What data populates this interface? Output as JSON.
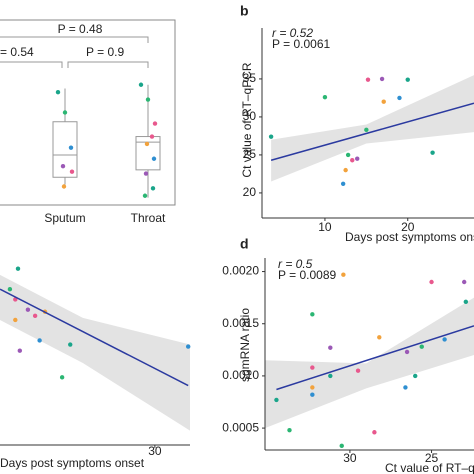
{
  "chart_data": [
    {
      "type": "box",
      "categories": [
        "Sputum",
        "Throat"
      ],
      "ylim": [
        0,
        1
      ],
      "boxes": [
        {
          "min": 0.11,
          "q1": 0.15,
          "median": 0.27,
          "q3": 0.45,
          "max": 0.63
        },
        {
          "min": 0.04,
          "q1": 0.19,
          "median": 0.34,
          "q3": 0.37,
          "max": 0.65
        }
      ],
      "points": [
        [
          0.61,
          0.5,
          0.18,
          0.1,
          0.31,
          0.21
        ],
        [
          0.65,
          0.57,
          0.44,
          0.33,
          0.25,
          0.17,
          0.09,
          0.05,
          0.37
        ]
      ],
      "annotations": [
        "P = 0.48",
        "= 0.54",
        "P = 0.9"
      ],
      "colors": [
        "#1aa58a",
        "#2bb673",
        "#e8588d",
        "#f2a23c",
        "#2f8fd1",
        "#9b59b6"
      ]
    },
    {
      "type": "scatter",
      "panel_label": "b",
      "stats": [
        "r = 0.52",
        "P = 0.0061"
      ],
      "y_label": "Ct value of RT–qPCR",
      "x_label": "Days post symptoms onset",
      "xlim": [
        2.4,
        28
      ],
      "ylim": [
        16.7,
        41.7
      ],
      "xticks": [
        10,
        20
      ],
      "yticks": [
        20,
        25,
        30,
        35
      ],
      "x": [
        3.5,
        10,
        15.2,
        17.1,
        19,
        16.9,
        20,
        15,
        13.3,
        12.5,
        12.2,
        13.9,
        23,
        12.8
      ],
      "y": [
        27.4,
        32.6,
        34.9,
        32,
        32.5,
        35,
        34.9,
        28.3,
        24.3,
        23,
        21.2,
        24.5,
        25.3,
        25
      ],
      "fit": {
        "x": [
          3.5,
          28
        ],
        "y": [
          24.3,
          31.8
        ],
        "color": "#2b3aa0"
      },
      "ci": {
        "x": [
          3.5,
          15,
          28
        ],
        "lower": [
          21.5,
          26.5,
          28
        ],
        "upper": [
          27,
          29,
          35.5
        ],
        "color": "#e3e3e3"
      },
      "colors": [
        "#1aa58a",
        "#2bb673",
        "#e8588d",
        "#f2a23c",
        "#2f8fd1",
        "#9b59b6"
      ]
    },
    {
      "type": "scatter",
      "x_label": "Days post symptoms onset",
      "xlim": [
        12.8,
        33.9
      ],
      "ylim": [
        0,
        1
      ],
      "xticks": [
        30
      ],
      "x": [
        14.8,
        13.9,
        16.7,
        14.5,
        17.2,
        15,
        20.6,
        19.7,
        14.5,
        17.8,
        33.7,
        15.9
      ],
      "y": [
        0.86,
        0.76,
        0.63,
        0.61,
        0.51,
        0.46,
        0.49,
        0.33,
        0.71,
        0.65,
        0.48,
        0.66
      ],
      "fit": {
        "x": [
          12.8,
          33.7
        ],
        "y": [
          0.76,
          0.29
        ],
        "color": "#2b3aa0"
      },
      "ci": {
        "x": [
          12.8,
          22,
          33.9
        ],
        "lower": [
          0.61,
          0.4,
          0.07
        ],
        "upper": [
          0.83,
          0.62,
          0.49
        ],
        "color": "#e3e3e3"
      },
      "colors": [
        "#1aa58a",
        "#2bb673",
        "#e8588d",
        "#f2a23c",
        "#2f8fd1",
        "#9b59b6"
      ]
    },
    {
      "type": "scatter",
      "panel_label": "d",
      "stats": [
        "r = 0.5",
        "P = 0.0089"
      ],
      "y_label": "sgmRNA ratio",
      "x_label": "Ct value of RT–qPCR",
      "xlim": [
        35.2,
        22.4
      ],
      "ylim": [
        0.00029,
        0.00213
      ],
      "xticks": [
        30,
        25
      ],
      "yticks": [
        {
          "value": 0.0005,
          "label": "0.0005"
        },
        {
          "value": 0.001,
          "label": "0.0010"
        },
        {
          "value": 0.0015,
          "label": "0.0015"
        },
        {
          "value": 0.002,
          "label": "0.0020"
        }
      ],
      "x": [
        34.5,
        33.7,
        32.3,
        32.3,
        32.3,
        31.2,
        31.2,
        30.5,
        28.5,
        28.2,
        26.6,
        26.5,
        26,
        25.6,
        25,
        30.4,
        24.2,
        23,
        22.9,
        32.3,
        29.5
      ],
      "y": [
        0.00077,
        0.00048,
        0.00108,
        0.00089,
        0.00082,
        0.00127,
        0.001,
        0.00033,
        0.00046,
        0.00137,
        0.00089,
        0.00123,
        0.001,
        0.00128,
        0.0019,
        0.00197,
        0.00135,
        0.0019,
        0.00171,
        0.00159,
        0.00105
      ],
      "fit": {
        "x": [
          34.5,
          22.4
        ],
        "y": [
          0.00087,
          0.00148
        ],
        "color": "#2b3aa0"
      },
      "ci": {
        "x": [
          35.2,
          29,
          22.4
        ],
        "lower": [
          0.0005,
          0.00088,
          0.0012
        ],
        "upper": [
          0.00115,
          0.00112,
          0.00175
        ],
        "color": "#e3e3e3"
      },
      "colors": [
        "#1aa58a",
        "#2bb673",
        "#e8588d",
        "#f2a23c",
        "#2f8fd1",
        "#9b59b6"
      ]
    }
  ]
}
